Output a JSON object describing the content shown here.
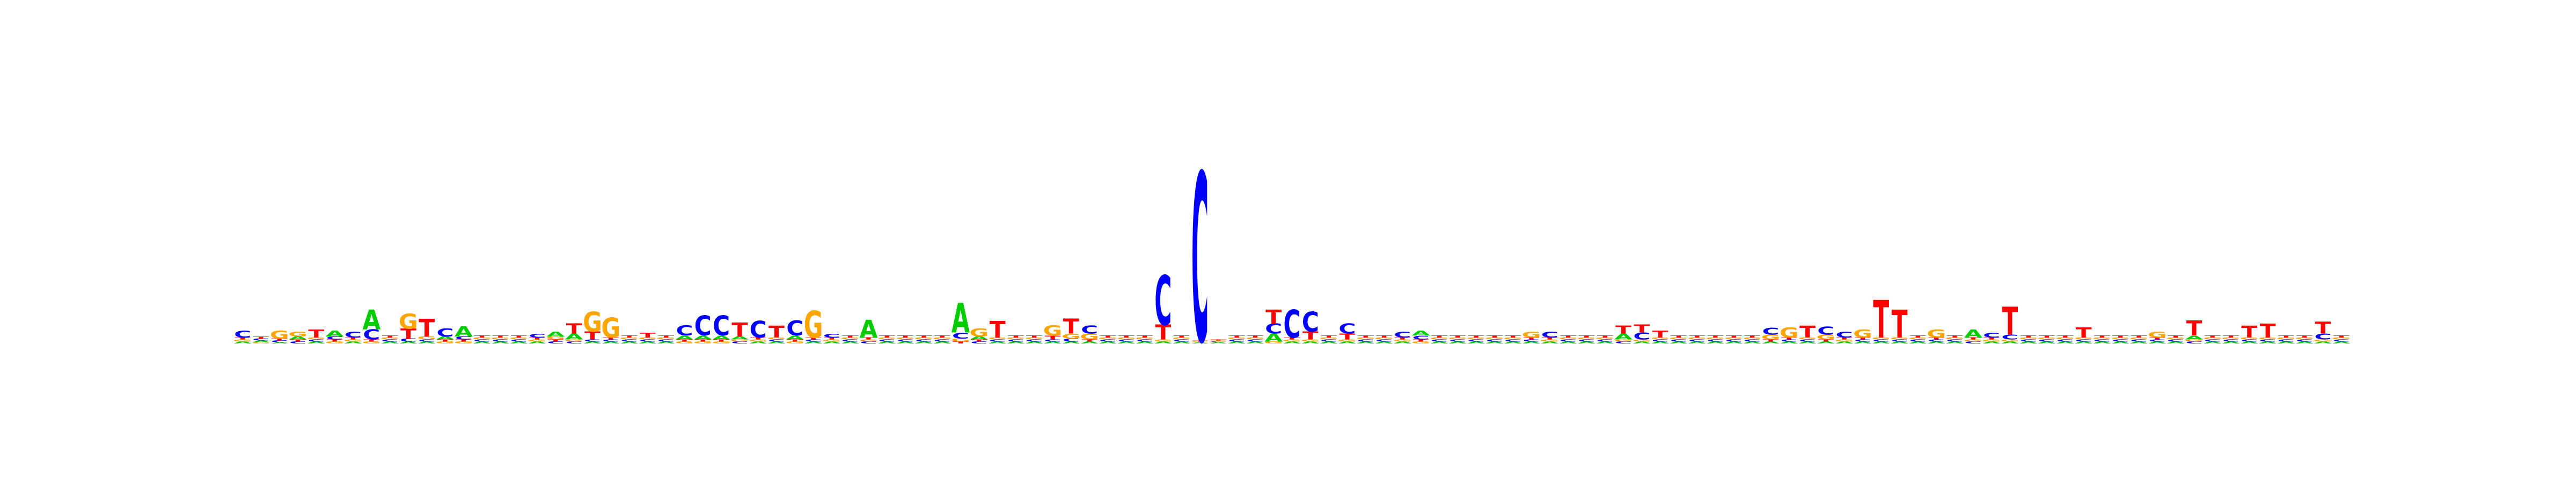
{
  "chart_data": {
    "type": "sequence_logo",
    "alphabet": [
      "A",
      "C",
      "G",
      "T"
    ],
    "colors": {
      "A": "#00cc00",
      "C": "#0000ff",
      "G": "#ffa500",
      "T": "#ff0000"
    },
    "ylim": [
      0,
      2
    ],
    "grid": false,
    "legend": "none",
    "positions": [
      [
        0.02,
        0.07,
        0.02,
        0.02
      ],
      [
        0.02,
        0.02,
        0.01,
        0.02
      ],
      [
        0.01,
        0.02,
        0.08,
        0.02
      ],
      [
        0.03,
        0.02,
        0.05,
        0.02
      ],
      [
        0.02,
        0.02,
        0.02,
        0.08
      ],
      [
        0.06,
        0.03,
        0.02,
        0.02
      ],
      [
        0.02,
        0.06,
        0.02,
        0.02
      ],
      [
        0.2,
        0.1,
        0.02,
        0.02
      ],
      [
        0.02,
        0.02,
        0.02,
        0.02
      ],
      [
        0.02,
        0.03,
        0.15,
        0.1
      ],
      [
        0.02,
        0.02,
        0.03,
        0.18
      ],
      [
        0.03,
        0.08,
        0.02,
        0.02
      ],
      [
        0.1,
        0.03,
        0.02,
        0.02
      ],
      [
        0.02,
        0.02,
        0.02,
        0.02
      ],
      [
        0.02,
        0.02,
        0.02,
        0.02
      ],
      [
        0.02,
        0.02,
        0.02,
        0.02
      ],
      [
        0.02,
        0.04,
        0.02,
        0.02
      ],
      [
        0.05,
        0.02,
        0.03,
        0.02
      ],
      [
        0.06,
        0.02,
        0.02,
        0.1
      ],
      [
        0.02,
        0.02,
        0.2,
        0.08
      ],
      [
        0.02,
        0.02,
        0.2,
        0.02
      ],
      [
        0.02,
        0.02,
        0.02,
        0.02
      ],
      [
        0.02,
        0.02,
        0.02,
        0.05
      ],
      [
        0.02,
        0.02,
        0.02,
        0.02
      ],
      [
        0.04,
        0.1,
        0.02,
        0.02
      ],
      [
        0.04,
        0.2,
        0.02,
        0.02
      ],
      [
        0.04,
        0.2,
        0.02,
        0.02
      ],
      [
        0.03,
        0.02,
        0.02,
        0.14
      ],
      [
        0.02,
        0.17,
        0.02,
        0.02
      ],
      [
        0.02,
        0.02,
        0.02,
        0.12
      ],
      [
        0.04,
        0.15,
        0.02,
        0.02
      ],
      [
        0.02,
        0.02,
        0.27,
        0.02
      ],
      [
        0.02,
        0.04,
        0.02,
        0.02
      ],
      [
        0.02,
        0.02,
        0.02,
        0.02
      ],
      [
        0.18,
        0.02,
        0.02,
        0.02
      ],
      [
        0.02,
        0.02,
        0.02,
        0.02
      ],
      [
        0.02,
        0.02,
        0.02,
        0.02
      ],
      [
        0.02,
        0.02,
        0.02,
        0.02
      ],
      [
        0.02,
        0.02,
        0.02,
        0.02
      ],
      [
        0.3,
        0.06,
        0.03,
        0.02
      ],
      [
        0.03,
        0.02,
        0.08,
        0.02
      ],
      [
        0.02,
        0.02,
        0.02,
        0.17
      ],
      [
        0.02,
        0.02,
        0.02,
        0.02
      ],
      [
        0.02,
        0.02,
        0.02,
        0.02
      ],
      [
        0.02,
        0.02,
        0.1,
        0.04
      ],
      [
        0.02,
        0.03,
        0.05,
        0.15
      ],
      [
        0.02,
        0.08,
        0.06,
        0.02
      ],
      [
        0.02,
        0.02,
        0.02,
        0.02
      ],
      [
        0.02,
        0.02,
        0.02,
        0.02
      ],
      [
        0.02,
        0.02,
        0.02,
        0.02
      ],
      [
        0.02,
        0.5,
        0.02,
        0.15
      ],
      [
        0.02,
        0.02,
        0.02,
        0.02
      ],
      [
        0.01,
        1.7,
        0.01,
        0.01
      ],
      [
        0.01,
        0.01,
        0.01,
        0.01
      ],
      [
        0.02,
        0.02,
        0.02,
        0.02
      ],
      [
        0.02,
        0.02,
        0.02,
        0.02
      ],
      [
        0.08,
        0.1,
        0.02,
        0.14
      ],
      [
        0.02,
        0.28,
        0.02,
        0.02
      ],
      [
        0.02,
        0.2,
        0.02,
        0.08
      ],
      [
        0.02,
        0.02,
        0.02,
        0.02
      ],
      [
        0.02,
        0.1,
        0.02,
        0.06
      ],
      [
        0.02,
        0.02,
        0.02,
        0.02
      ],
      [
        0.02,
        0.02,
        0.02,
        0.02
      ],
      [
        0.02,
        0.06,
        0.02,
        0.02
      ],
      [
        0.05,
        0.04,
        0.02,
        0.02
      ],
      [
        0.02,
        0.02,
        0.02,
        0.02
      ],
      [
        0.02,
        0.02,
        0.02,
        0.02
      ],
      [
        0.02,
        0.02,
        0.02,
        0.02
      ],
      [
        0.02,
        0.02,
        0.02,
        0.02
      ],
      [
        0.02,
        0.02,
        0.02,
        0.02
      ],
      [
        0.02,
        0.02,
        0.06,
        0.02
      ],
      [
        0.02,
        0.06,
        0.02,
        0.02
      ],
      [
        0.02,
        0.02,
        0.02,
        0.02
      ],
      [
        0.02,
        0.02,
        0.02,
        0.02
      ],
      [
        0.02,
        0.02,
        0.02,
        0.02
      ],
      [
        0.06,
        0.02,
        0.02,
        0.08
      ],
      [
        0.02,
        0.07,
        0.02,
        0.08
      ],
      [
        0.02,
        0.02,
        0.02,
        0.07
      ],
      [
        0.02,
        0.02,
        0.02,
        0.02
      ],
      [
        0.02,
        0.02,
        0.02,
        0.02
      ],
      [
        0.02,
        0.02,
        0.02,
        0.02
      ],
      [
        0.02,
        0.02,
        0.02,
        0.02
      ],
      [
        0.02,
        0.02,
        0.02,
        0.02
      ],
      [
        0.02,
        0.07,
        0.05,
        0.02
      ],
      [
        0.02,
        0.02,
        0.1,
        0.02
      ],
      [
        0.02,
        0.02,
        0.02,
        0.12
      ],
      [
        0.02,
        0.08,
        0.05,
        0.02
      ],
      [
        0.02,
        0.06,
        0.02,
        0.02
      ],
      [
        0.02,
        0.02,
        0.08,
        0.02
      ],
      [
        0.02,
        0.02,
        0.02,
        0.38
      ],
      [
        0.02,
        0.02,
        0.02,
        0.28
      ],
      [
        0.02,
        0.02,
        0.02,
        0.02
      ],
      [
        0.02,
        0.02,
        0.08,
        0.02
      ],
      [
        0.02,
        0.02,
        0.02,
        0.02
      ],
      [
        0.08,
        0.02,
        0.02,
        0.02
      ],
      [
        0.02,
        0.05,
        0.02,
        0.02
      ],
      [
        0.02,
        0.05,
        0.02,
        0.28
      ],
      [
        0.02,
        0.02,
        0.02,
        0.02
      ],
      [
        0.02,
        0.02,
        0.02,
        0.02
      ],
      [
        0.02,
        0.02,
        0.02,
        0.02
      ],
      [
        0.02,
        0.02,
        0.02,
        0.1
      ],
      [
        0.02,
        0.02,
        0.02,
        0.02
      ],
      [
        0.02,
        0.02,
        0.02,
        0.02
      ],
      [
        0.02,
        0.02,
        0.02,
        0.02
      ],
      [
        0.02,
        0.02,
        0.06,
        0.02
      ],
      [
        0.02,
        0.02,
        0.02,
        0.02
      ],
      [
        0.04,
        0.02,
        0.02,
        0.15
      ],
      [
        0.02,
        0.02,
        0.02,
        0.02
      ],
      [
        0.02,
        0.02,
        0.02,
        0.02
      ],
      [
        0.02,
        0.02,
        0.02,
        0.12
      ],
      [
        0.02,
        0.02,
        0.02,
        0.14
      ],
      [
        0.02,
        0.02,
        0.02,
        0.02
      ],
      [
        0.02,
        0.02,
        0.02,
        0.02
      ],
      [
        0.02,
        0.06,
        0.02,
        0.12
      ],
      [
        0.02,
        0.02,
        0.02,
        0.02
      ]
    ]
  }
}
